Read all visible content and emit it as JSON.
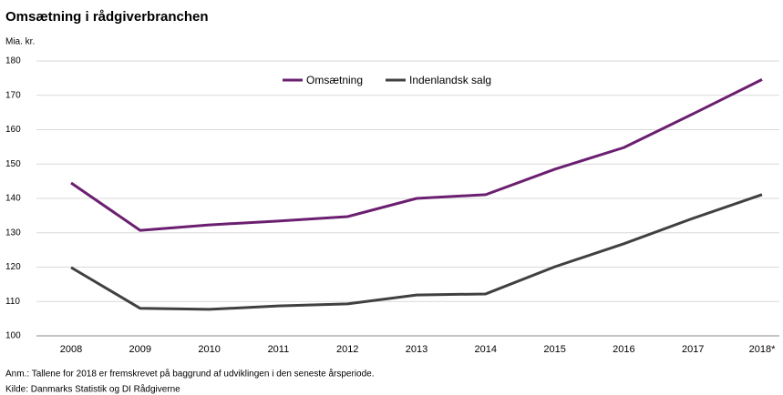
{
  "chart_data": {
    "type": "line",
    "title": "Omsætning i rådgiverbranchen",
    "y_label": "Mia. kr.",
    "categories": [
      "2008",
      "2009",
      "2010",
      "2011",
      "2012",
      "2013",
      "2014",
      "2015",
      "2016",
      "2017",
      "2018*"
    ],
    "series": [
      {
        "name": "Omsætning",
        "color": "#6b1f70",
        "values": [
          144.5,
          130.7,
          132.3,
          133.4,
          134.7,
          140,
          141.1,
          148.5,
          154.8,
          164.6,
          174.6
        ]
      },
      {
        "name": "Indenlandsk salg",
        "color": "#404040",
        "values": [
          119.9,
          108,
          107.7,
          108.7,
          109.3,
          111.9,
          112.2,
          120.1,
          126.8,
          134.2,
          141.1
        ]
      }
    ],
    "ylim": [
      100,
      180
    ],
    "yticks": [
      100,
      110,
      120,
      130,
      140,
      150,
      160,
      170,
      180
    ],
    "grid": true,
    "legend": "top",
    "notes": [
      "Anm.: Tallene for 2018 er fremskrevet på baggrund af udviklingen i den seneste årsperiode.",
      "Kilde: Danmarks Statistik og DI Rådgiverne"
    ]
  }
}
